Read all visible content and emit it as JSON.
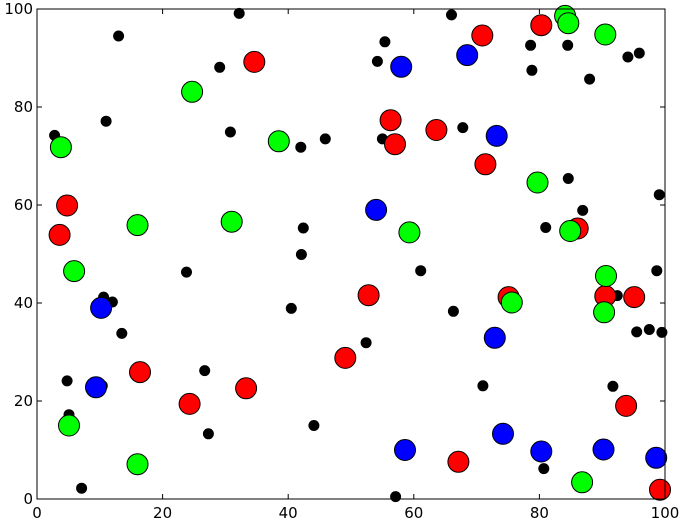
{
  "chart_data": {
    "type": "scatter",
    "title": "",
    "xlabel": "",
    "ylabel": "",
    "xlim": [
      0,
      100
    ],
    "ylim": [
      0,
      100
    ],
    "xticks": [
      0,
      20,
      40,
      60,
      80,
      100
    ],
    "yticks": [
      0,
      20,
      40,
      60,
      80,
      100
    ],
    "grid": false,
    "series": [
      {
        "color": "#000000",
        "marker_size": "small",
        "points": [
          [
            2.8,
            74.2
          ],
          [
            4.8,
            24.1
          ],
          [
            5.1,
            17.2
          ],
          [
            7.1,
            2.2
          ],
          [
            10.4,
            23.1
          ],
          [
            10.6,
            41.2
          ],
          [
            11.0,
            77.1
          ],
          [
            12.0,
            40.2
          ],
          [
            13.0,
            94.5
          ],
          [
            13.5,
            33.8
          ],
          [
            23.8,
            46.3
          ],
          [
            26.7,
            26.2
          ],
          [
            27.3,
            13.3
          ],
          [
            29.1,
            88.1
          ],
          [
            30.8,
            74.9
          ],
          [
            32.2,
            99.1
          ],
          [
            40.5,
            38.9
          ],
          [
            42.0,
            71.8
          ],
          [
            42.1,
            49.9
          ],
          [
            42.4,
            55.3
          ],
          [
            44.1,
            15.0
          ],
          [
            45.9,
            73.5
          ],
          [
            52.4,
            31.9
          ],
          [
            54.2,
            89.3
          ],
          [
            55.0,
            73.5
          ],
          [
            55.4,
            93.3
          ],
          [
            57.1,
            0.5
          ],
          [
            61.1,
            46.6
          ],
          [
            66.0,
            98.8
          ],
          [
            66.3,
            38.3
          ],
          [
            67.8,
            75.8
          ],
          [
            71.0,
            23.1
          ],
          [
            78.6,
            92.6
          ],
          [
            78.8,
            87.5
          ],
          [
            80.7,
            6.2
          ],
          [
            81.0,
            55.4
          ],
          [
            84.5,
            92.6
          ],
          [
            84.6,
            65.4
          ],
          [
            86.9,
            58.9
          ],
          [
            88.0,
            85.7
          ],
          [
            91.7,
            23.0
          ],
          [
            92.4,
            41.5
          ],
          [
            94.1,
            90.2
          ],
          [
            95.5,
            34.1
          ],
          [
            95.9,
            91.0
          ],
          [
            97.5,
            34.6
          ],
          [
            98.7,
            46.6
          ],
          [
            99.1,
            62.1
          ],
          [
            99.5,
            34.0
          ]
        ]
      },
      {
        "color": "#ff0000",
        "marker_size": "large",
        "points": [
          [
            3.6,
            53.9
          ],
          [
            4.8,
            59.9
          ],
          [
            16.4,
            25.9
          ],
          [
            24.3,
            19.4
          ],
          [
            33.3,
            22.6
          ],
          [
            34.6,
            89.2
          ],
          [
            49.1,
            28.8
          ],
          [
            52.8,
            41.6
          ],
          [
            56.3,
            77.3
          ],
          [
            57.0,
            72.4
          ],
          [
            63.6,
            75.3
          ],
          [
            67.1,
            7.6
          ],
          [
            70.9,
            94.6
          ],
          [
            71.4,
            68.3
          ],
          [
            75.1,
            41.2
          ],
          [
            80.3,
            96.7
          ],
          [
            86.1,
            55.2
          ],
          [
            90.5,
            41.4
          ],
          [
            93.8,
            19.0
          ],
          [
            95.1,
            41.2
          ],
          [
            99.2,
            1.9
          ]
        ]
      },
      {
        "color": "#00ff00",
        "marker_size": "large",
        "points": [
          [
            3.8,
            71.8
          ],
          [
            5.1,
            15.0
          ],
          [
            5.9,
            46.5
          ],
          [
            16.0,
            7.1
          ],
          [
            16.0,
            55.9
          ],
          [
            24.7,
            83.1
          ],
          [
            31.0,
            56.6
          ],
          [
            38.5,
            73.0
          ],
          [
            59.3,
            54.4
          ],
          [
            75.6,
            40.1
          ],
          [
            79.7,
            64.6
          ],
          [
            84.1,
            98.6
          ],
          [
            84.6,
            97.1
          ],
          [
            84.9,
            54.7
          ],
          [
            86.8,
            3.4
          ],
          [
            90.3,
            38.1
          ],
          [
            90.6,
            45.5
          ],
          [
            90.5,
            94.8
          ]
        ]
      },
      {
        "color": "#0000ff",
        "marker_size": "large",
        "points": [
          [
            9.4,
            22.8
          ],
          [
            10.2,
            39.0
          ],
          [
            54.0,
            59.0
          ],
          [
            58.0,
            88.2
          ],
          [
            58.6,
            10.0
          ],
          [
            68.5,
            90.6
          ],
          [
            72.9,
            32.9
          ],
          [
            73.2,
            74.1
          ],
          [
            74.2,
            13.3
          ],
          [
            80.3,
            9.7
          ],
          [
            90.2,
            10.1
          ],
          [
            98.6,
            8.4
          ]
        ]
      }
    ]
  }
}
